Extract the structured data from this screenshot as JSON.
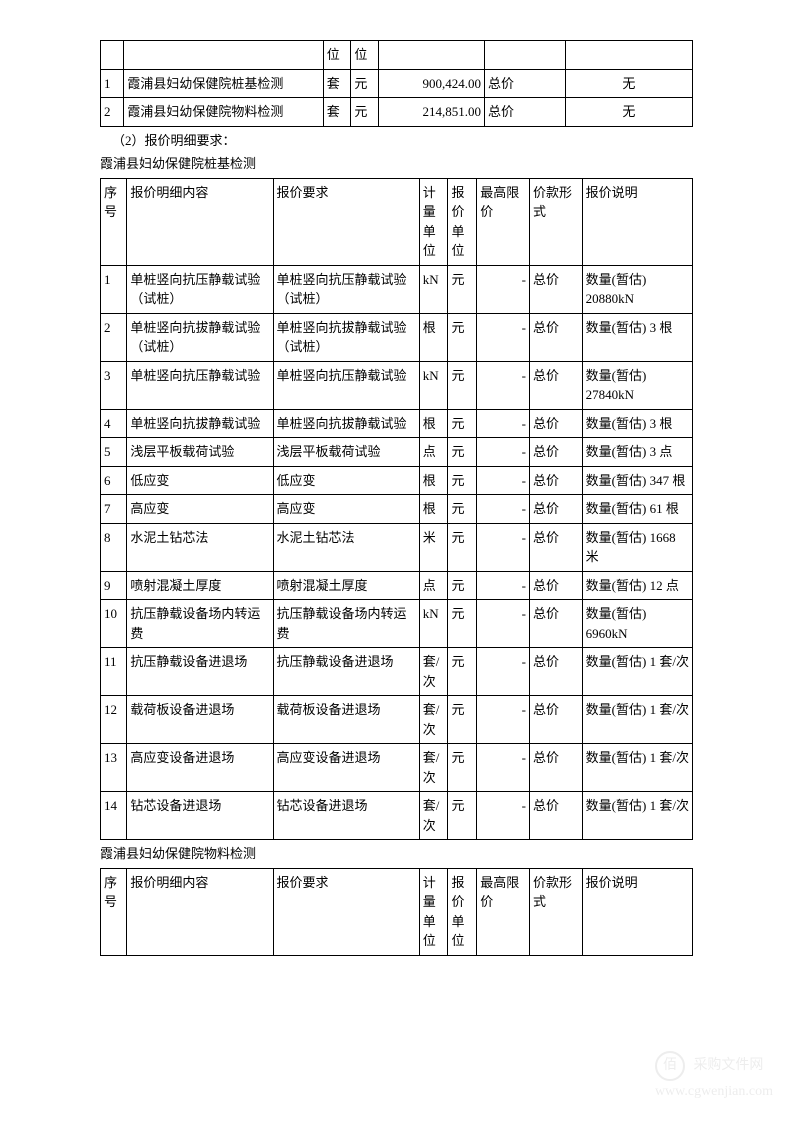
{
  "table1": {
    "rows": [
      {
        "idx": "",
        "name": "",
        "unit1": "位",
        "unit2": "位",
        "amount": "",
        "type": "",
        "note": ""
      },
      {
        "idx": "1",
        "name": "霞浦县妇幼保健院桩基检测",
        "unit1": "套",
        "unit2": "元",
        "amount": "900,424.00",
        "type": "总价",
        "note": "无"
      },
      {
        "idx": "2",
        "name": "霞浦县妇幼保健院物料检测",
        "unit1": "套",
        "unit2": "元",
        "amount": "214,851.00",
        "type": "总价",
        "note": "无"
      }
    ]
  },
  "section_label": "（2）报价明细要求：",
  "subtitle1": "霞浦县妇幼保健院桩基检测",
  "table2": {
    "headers": [
      "序号",
      "报价明细内容",
      "报价要求",
      "计量单位",
      "报价单位",
      "最高限价",
      "价款形式",
      "报价说明"
    ],
    "rows": [
      {
        "idx": "1",
        "content": "单桩竖向抗压静载试验（试桩）",
        "req": "单桩竖向抗压静载试验（试桩）",
        "munit": "kN",
        "punit": "元",
        "max": "-",
        "form": "总价",
        "desc": "数量(暂估) 20880kN"
      },
      {
        "idx": "2",
        "content": "单桩竖向抗拔静载试验（试桩）",
        "req": "单桩竖向抗拔静载试验（试桩）",
        "munit": "根",
        "punit": "元",
        "max": "-",
        "form": "总价",
        "desc": "数量(暂估) 3 根"
      },
      {
        "idx": "3",
        "content": "单桩竖向抗压静载试验",
        "req": "单桩竖向抗压静载试验",
        "munit": "kN",
        "punit": "元",
        "max": "-",
        "form": "总价",
        "desc": "数量(暂估) 27840kN"
      },
      {
        "idx": "4",
        "content": "单桩竖向抗拔静载试验",
        "req": "单桩竖向抗拔静载试验",
        "munit": "根",
        "punit": "元",
        "max": "-",
        "form": "总价",
        "desc": "数量(暂估) 3 根"
      },
      {
        "idx": "5",
        "content": "浅层平板载荷试验",
        "req": "浅层平板载荷试验",
        "munit": "点",
        "punit": "元",
        "max": "-",
        "form": "总价",
        "desc": "数量(暂估) 3 点"
      },
      {
        "idx": "6",
        "content": "低应变",
        "req": "低应变",
        "munit": "根",
        "punit": "元",
        "max": "-",
        "form": "总价",
        "desc": "数量(暂估) 347 根"
      },
      {
        "idx": "7",
        "content": "高应变",
        "req": "高应变",
        "munit": "根",
        "punit": "元",
        "max": "-",
        "form": "总价",
        "desc": "数量(暂估) 61 根"
      },
      {
        "idx": "8",
        "content": "水泥土钻芯法",
        "req": "水泥土钻芯法",
        "munit": "米",
        "punit": "元",
        "max": "-",
        "form": "总价",
        "desc": "数量(暂估) 1668 米"
      },
      {
        "idx": "9",
        "content": "喷射混凝土厚度",
        "req": "喷射混凝土厚度",
        "munit": "点",
        "punit": "元",
        "max": "-",
        "form": "总价",
        "desc": "数量(暂估) 12 点"
      },
      {
        "idx": "10",
        "content": "抗压静载设备场内转运费",
        "req": "抗压静载设备场内转运费",
        "munit": "kN",
        "punit": "元",
        "max": "-",
        "form": "总价",
        "desc": "数量(暂估) 6960kN"
      },
      {
        "idx": "11",
        "content": "抗压静载设备进退场",
        "req": "抗压静载设备进退场",
        "munit": "套/次",
        "punit": "元",
        "max": "-",
        "form": "总价",
        "desc": "数量(暂估) 1 套/次"
      },
      {
        "idx": "12",
        "content": "载荷板设备进退场",
        "req": "载荷板设备进退场",
        "munit": "套/次",
        "punit": "元",
        "max": "-",
        "form": "总价",
        "desc": "数量(暂估) 1 套/次"
      },
      {
        "idx": "13",
        "content": "高应变设备进退场",
        "req": "高应变设备进退场",
        "munit": "套/次",
        "punit": "元",
        "max": "-",
        "form": "总价",
        "desc": "数量(暂估) 1 套/次"
      },
      {
        "idx": "14",
        "content": "钻芯设备进退场",
        "req": "钻芯设备进退场",
        "munit": "套/次",
        "punit": "元",
        "max": "-",
        "form": "总价",
        "desc": "数量(暂估) 1 套/次"
      }
    ]
  },
  "subtitle2": "霞浦县妇幼保健院物料检测",
  "table3": {
    "headers": [
      "序号",
      "报价明细内容",
      "报价要求",
      "计量单位",
      "报价单位",
      "最高限价",
      "价款形式",
      "报价说明"
    ]
  },
  "watermark": {
    "text": "采购文件网",
    "url": "www.cgwenjian.com",
    "icon": "佰"
  },
  "colwidths": {
    "t1_idx": "22px",
    "t1_name": "188px",
    "t1_u1": "26px",
    "t1_u2": "26px",
    "t1_amt": "100px",
    "t1_type": "76px",
    "t1_note": "120px",
    "t2_idx": "22px",
    "t2_content": "122px",
    "t2_req": "122px",
    "t2_munit": "24px",
    "t2_punit": "24px",
    "t2_max": "44px",
    "t2_form": "44px",
    "t2_desc": "92px"
  }
}
